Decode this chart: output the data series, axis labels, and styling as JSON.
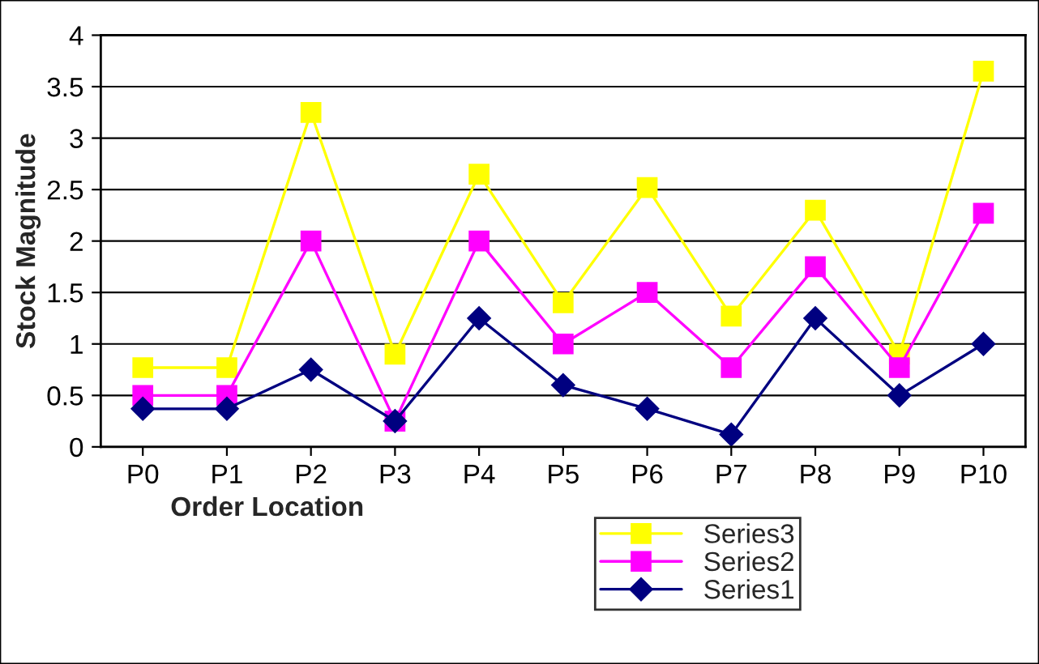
{
  "chart_data": {
    "type": "line",
    "xlabel": "Order Location",
    "ylabel": "Stock Magnitude",
    "categories": [
      "P0",
      "P1",
      "P2",
      "P3",
      "P4",
      "P5",
      "P6",
      "P7",
      "P8",
      "P9",
      "P10"
    ],
    "series": [
      {
        "name": "Series3",
        "color": "#ffff00",
        "marker": "square",
        "values": [
          0.77,
          0.77,
          3.25,
          0.9,
          2.65,
          1.4,
          2.52,
          1.27,
          2.3,
          0.9,
          3.65
        ]
      },
      {
        "name": "Series2",
        "color": "#ff00ff",
        "marker": "square",
        "values": [
          0.5,
          0.5,
          2.0,
          0.25,
          2.0,
          1.0,
          1.5,
          0.77,
          1.75,
          0.77,
          2.27
        ]
      },
      {
        "name": "Series1",
        "color": "#000080",
        "marker": "diamond",
        "values": [
          0.37,
          0.37,
          0.75,
          0.25,
          1.25,
          0.6,
          0.37,
          0.12,
          1.25,
          0.5,
          1.0
        ]
      }
    ],
    "ylim": [
      0,
      4
    ],
    "yticks": [
      0,
      0.5,
      1,
      1.5,
      2,
      2.5,
      3,
      3.5,
      4
    ],
    "grid": "y",
    "legend": "bottom right",
    "line_style": "solid"
  }
}
